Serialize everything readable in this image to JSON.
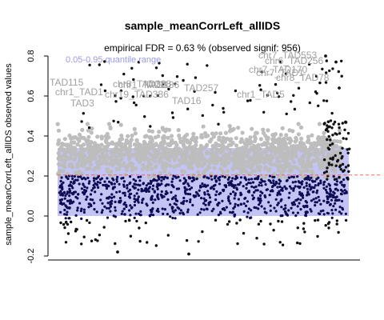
{
  "chart_data": {
    "type": "scatter",
    "title": "sample_meanCorrLeft_allIDS",
    "subtitle": "empirical FDR = 0.63 % (observed signif: 956)",
    "xlabel": "",
    "ylabel": "sample_meanCorrLeft_allIDS observed values",
    "ylim": [
      -0.22,
      0.84
    ],
    "yticks": [
      "-0.2",
      "0.0",
      "0.2",
      "0.4",
      "0.6",
      "0.8"
    ],
    "ytick_values": [
      -0.2,
      0,
      0.2,
      0.4,
      0.6,
      0.8
    ],
    "grid": false,
    "band": {
      "label": "0.05-0.95 quantile range",
      "lower": 0.0,
      "upper": 0.34,
      "color": "#c4c4f4"
    },
    "threshold_line": {
      "value": 0.205,
      "color": "#e06a6a"
    },
    "series": [
      {
        "role": "non-significant",
        "color": "#bdbdbd",
        "y_range": [
          0.19,
          0.45
        ]
      },
      {
        "role": "significant",
        "color": "#111111",
        "y_range": [
          0.2,
          0.8
        ]
      },
      {
        "role": "within-band",
        "color": "#0d0d55",
        "y_range": [
          -0.02,
          0.2
        ]
      }
    ],
    "annotations": [
      "chr7_TAD553",
      "chr6_TAD256",
      "chr7_TAD170",
      "chr7_TAD1",
      "chr8_TAD78",
      "chr1_TAD2",
      "chr8_TAD388",
      "chr19_TAD386",
      "TAD115",
      "chr1_TAD1",
      "TAD3",
      "TAD186",
      "TAD257",
      "TAD16",
      "chr1_TAD5"
    ],
    "colors": {
      "background": "#ffffff",
      "axis": "#000000",
      "band": "#c4c4f4",
      "threshold": "#e06a6a",
      "band_label": "#9a9ae8",
      "grey_points": "#bdbdbd",
      "label_text": "#a0a0a0"
    }
  }
}
